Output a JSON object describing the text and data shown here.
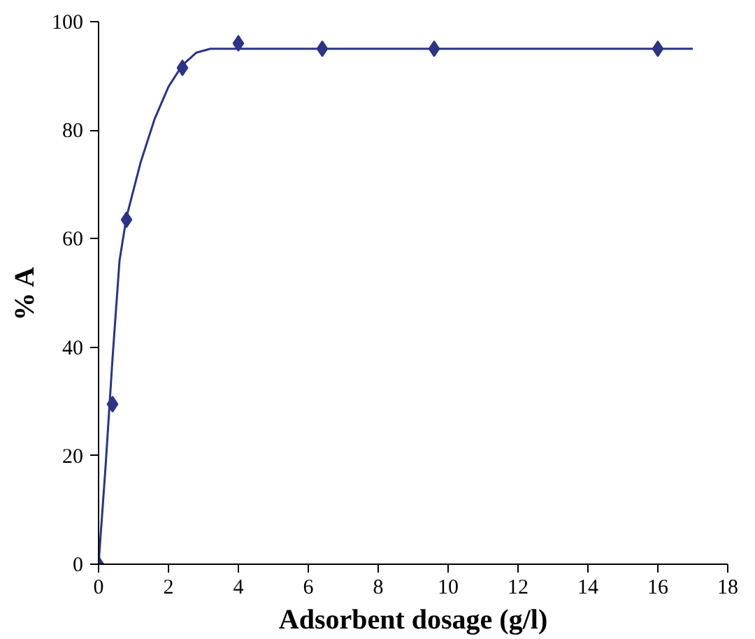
{
  "chart_data": {
    "type": "scatter",
    "xlabel": "Adsorbent dosage (g/l)",
    "ylabel": "% A",
    "xlim": [
      0,
      18
    ],
    "ylim": [
      0,
      100
    ],
    "xticks": [
      0,
      2,
      4,
      6,
      8,
      10,
      12,
      14,
      16,
      18
    ],
    "yticks": [
      0,
      20,
      40,
      60,
      80,
      100
    ],
    "grid": false,
    "series": [
      {
        "type": "line",
        "color": "#2b3487",
        "marker": "none",
        "line_style": "solid",
        "x": [
          0,
          0.2,
          0.4,
          0.6,
          0.8,
          1.2,
          1.6,
          2,
          2.4,
          2.8,
          3.2,
          3.6,
          4,
          6,
          10,
          14,
          17
        ],
        "values": [
          0,
          18,
          38,
          56,
          64,
          74,
          82,
          88,
          92,
          94.3,
          95,
          95,
          95,
          95,
          95,
          95,
          95
        ]
      },
      {
        "color": "#2b3487",
        "marker": "diamond",
        "x": [
          0,
          0.4,
          0.8,
          2.4,
          4,
          6.4,
          9.6,
          16
        ],
        "values": [
          0,
          29.5,
          63.5,
          91.5,
          96,
          95,
          95,
          95
        ]
      }
    ]
  }
}
